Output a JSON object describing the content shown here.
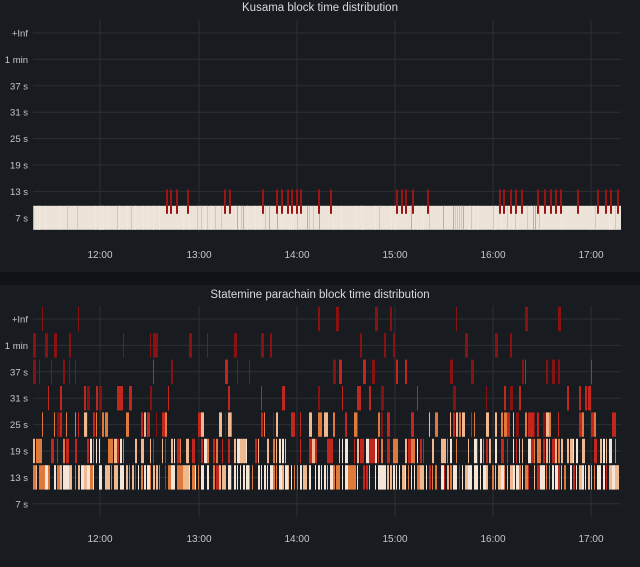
{
  "panels": [
    {
      "title": "Kusama block time distribution",
      "buckets": [
        "+Inf",
        "1 min",
        "37 s",
        "31 s",
        "25 s",
        "19 s",
        "13 s",
        "7 s"
      ],
      "x_ticks": [
        "12:00",
        "13:00",
        "14:00",
        "15:00",
        "16:00",
        "17:00"
      ]
    },
    {
      "title": "Statemine parachain block time distribution",
      "buckets": [
        "+Inf",
        "1 min",
        "37 s",
        "31 s",
        "25 s",
        "19 s",
        "13 s",
        "7 s"
      ],
      "x_ticks": [
        "12:00",
        "13:00",
        "14:00",
        "15:00",
        "16:00",
        "17:00"
      ]
    }
  ],
  "chart_data": [
    {
      "type": "heatmap",
      "title": "Kusama block time distribution",
      "y_buckets": [
        "+Inf",
        "1 min",
        "37 s",
        "31 s",
        "25 s",
        "19 s",
        "13 s",
        "7 s"
      ],
      "x_ticks": [
        "12:00",
        "13:00",
        "14:00",
        "15:00",
        "16:00",
        "17:00"
      ],
      "time_range": [
        "11:20",
        "17:20"
      ],
      "dominant_bucket": "7 s",
      "sparse_bucket": "13 s",
      "colors": {
        "high": "#f3e6d8",
        "mid": "#e07a3c",
        "low": "#8a1111",
        "background": "#181b1f"
      }
    },
    {
      "type": "heatmap",
      "title": "Statemine parachain block time distribution",
      "y_buckets": [
        "+Inf",
        "1 min",
        "37 s",
        "31 s",
        "25 s",
        "19 s",
        "13 s",
        "7 s"
      ],
      "x_ticks": [
        "12:00",
        "13:00",
        "14:00",
        "15:00",
        "16:00",
        "17:00"
      ],
      "time_range": [
        "11:20",
        "17:20"
      ],
      "dominant_bucket": "13 s",
      "secondary_buckets": [
        "19 s",
        "25 s"
      ],
      "colors": {
        "high": "#f3e6d8",
        "mid": "#e07a3c",
        "low": "#8a1111",
        "background": "#181b1f"
      }
    }
  ]
}
